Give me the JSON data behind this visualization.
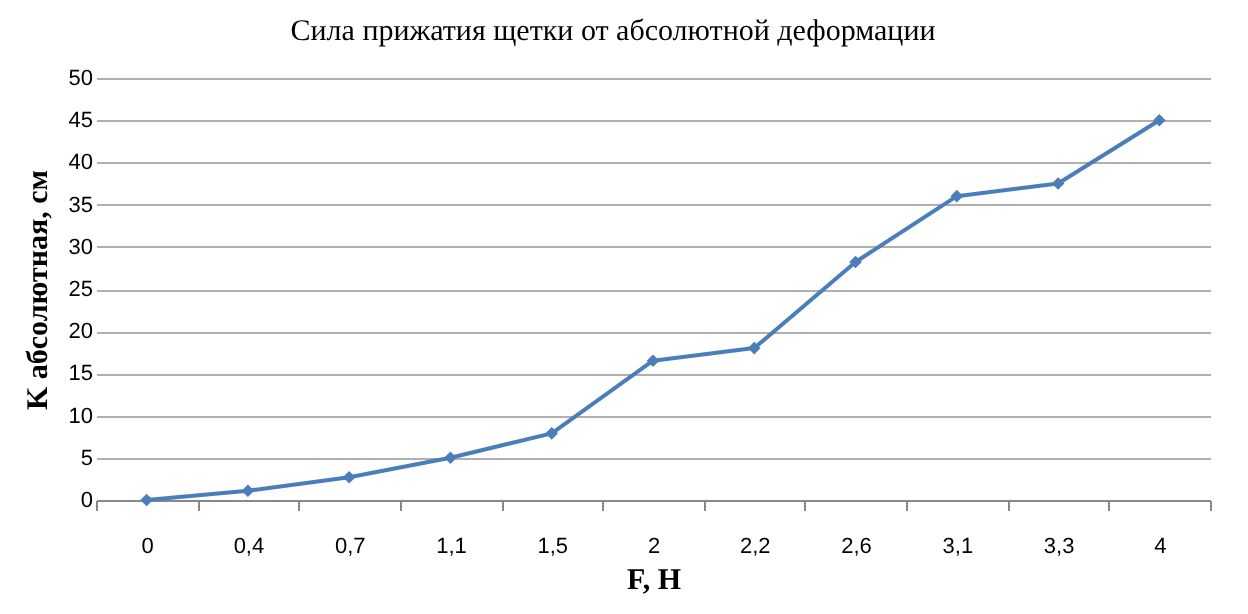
{
  "chart_data": {
    "type": "line",
    "title": "Сила прижатия щетки от абсолютной деформации",
    "xlabel": "F, H",
    "ylabel": "K абсолютная, см",
    "categories": [
      "0",
      "0,4",
      "0,7",
      "1,1",
      "1,5",
      "2",
      "2,2",
      "2,6",
      "3,1",
      "3,3",
      "4"
    ],
    "series": [
      {
        "color": "#4a7ebb",
        "values": [
          0,
          1.1,
          2.7,
          5,
          7.9,
          16.5,
          18,
          28.2,
          36,
          37.5,
          45
        ]
      }
    ],
    "ylim": [
      0,
      50
    ],
    "yticks": [
      0,
      5,
      10,
      15,
      20,
      25,
      30,
      35,
      40,
      45,
      50
    ],
    "grid": "y",
    "marker": "diamond",
    "line_style": "solid",
    "legend": false
  }
}
